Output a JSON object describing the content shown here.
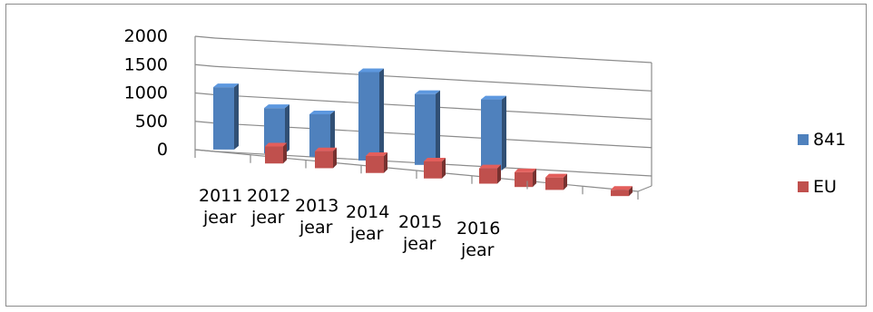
{
  "chart_data": {
    "type": "bar",
    "title": "",
    "xlabel": "",
    "ylabel": "",
    "ylim": [
      0,
      2000
    ],
    "yticks": [
      "0",
      "500",
      "1000",
      "1500",
      "2000"
    ],
    "grid": true,
    "legend_position": "right",
    "categories": [
      [
        "2011",
        "jear"
      ],
      [
        "2012",
        "jear"
      ],
      [
        "2013",
        "jear"
      ],
      [
        "2014",
        "jear"
      ],
      [
        "2015",
        "jear"
      ],
      [
        "2016",
        "jear"
      ],
      [
        "",
        ""
      ],
      [
        "",
        ""
      ]
    ],
    "series": [
      {
        "name": "841",
        "color": "#4f81bd",
        "values": [
          1100,
          800,
          750,
          1560,
          1250,
          1250,
          null,
          null
        ]
      },
      {
        "name": "EU",
        "color": "#c0504d",
        "values": [
          300,
          300,
          300,
          300,
          270,
          260,
          220,
          110
        ]
      }
    ]
  }
}
